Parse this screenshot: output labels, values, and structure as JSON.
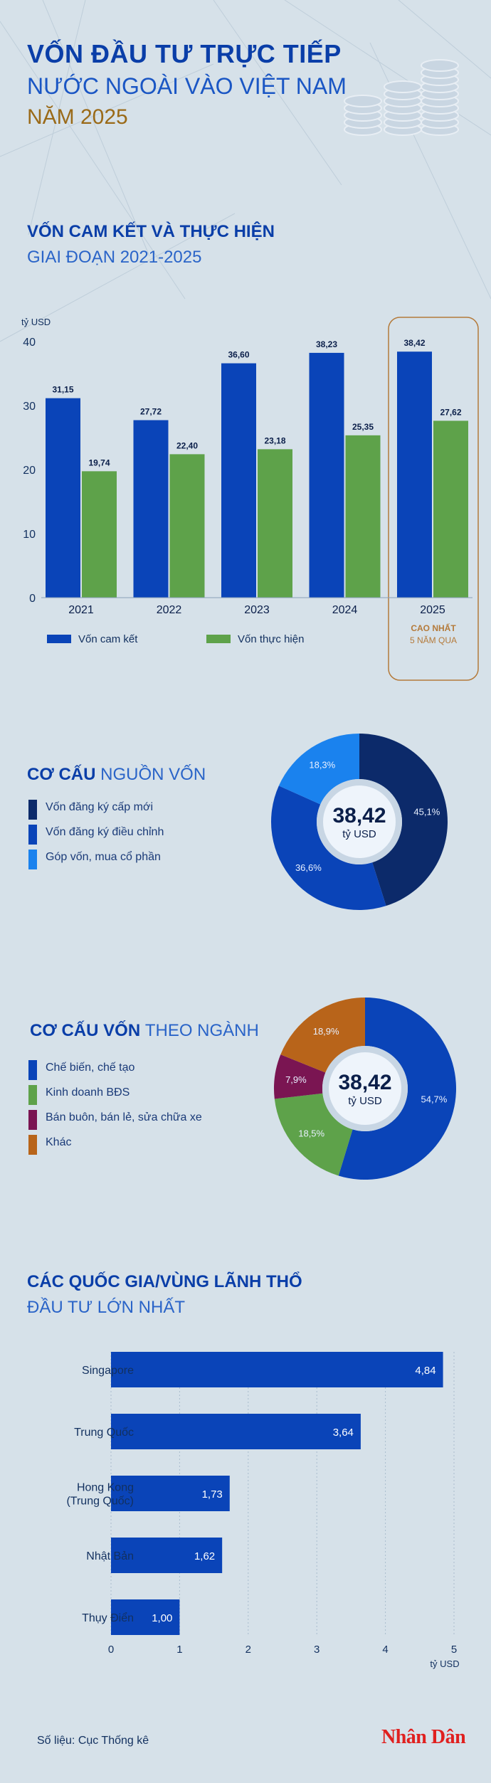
{
  "header": {
    "title_line1": "VỐN ĐẦU TƯ TRỰC TIẾP",
    "title_line2": "NƯỚC NGOÀI VÀO VIỆT NAM",
    "title_line3": "NĂM 2025"
  },
  "section1": {
    "title": "VỐN CAM KẾT VÀ THỰC HIỆN",
    "subtitle": "GIAI ĐOẠN 2021-2025",
    "highlight_line1": "CAO NHẤT",
    "highlight_line2": "5 NĂM QUA"
  },
  "section2": {
    "title_bold": "CƠ CẤU",
    "title_rest": "NGUỒN VỐN",
    "center_value": "38,42",
    "center_unit": "tỷ USD"
  },
  "section3": {
    "title_bold": "CƠ CẤU VỐN",
    "title_rest": "THEO NGÀNH",
    "center_value": "38,42",
    "center_unit": "tỷ USD"
  },
  "section4": {
    "title": "CÁC QUỐC GIA/VÙNG LÃNH THỔ",
    "subtitle": "ĐẦU TƯ LỚN NHẤT"
  },
  "footer": {
    "source": "Số liệu: Cục Thống kê",
    "logo": "Nhân Dân"
  },
  "colors": {
    "committed": "#0a44b8",
    "disbursed": "#5ea24a",
    "highlight": "#b47a3a",
    "text_blue": "#0a3ea8"
  },
  "chart_data": [
    {
      "type": "bar",
      "ylabel": "tỷ USD",
      "ylim": [
        0,
        40
      ],
      "yticks": [
        0,
        10,
        20,
        30,
        40
      ],
      "categories": [
        "2021",
        "2022",
        "2023",
        "2024",
        "2025"
      ],
      "series": [
        {
          "name": "Vốn cam kết",
          "color": "#0a44b8",
          "values": [
            31.15,
            27.72,
            36.6,
            38.23,
            38.42
          ],
          "labels": [
            "31,15",
            "27,72",
            "36,60",
            "38,23",
            "38,42"
          ]
        },
        {
          "name": "Vốn thực hiện",
          "color": "#5ea24a",
          "values": [
            19.74,
            22.4,
            23.18,
            25.35,
            27.62
          ],
          "labels": [
            "19,74",
            "22,40",
            "23,18",
            "25,35",
            "27,62"
          ]
        }
      ],
      "grid": false,
      "legend": "bottom"
    },
    {
      "type": "pie",
      "slices": [
        {
          "label": "Vốn đăng ký cấp mới",
          "value": 45.1,
          "text": "45,1%",
          "color": "#0c2a6a"
        },
        {
          "label": "Vốn đăng ký điều chỉnh",
          "value": 36.6,
          "text": "36,6%",
          "color": "#0a44b8"
        },
        {
          "label": "Góp vốn, mua cổ phần",
          "value": 18.3,
          "text": "18,3%",
          "color": "#1a82ee"
        }
      ],
      "legend": "left"
    },
    {
      "type": "pie",
      "slices": [
        {
          "label": "Chế biến, chế tạo",
          "value": 54.7,
          "text": "54,7%",
          "color": "#0a44b8"
        },
        {
          "label": "Kinh doanh BĐS",
          "value": 18.5,
          "text": "18,5%",
          "color": "#5ea24a"
        },
        {
          "label": "Bán buôn, bán lẻ, sửa chữa xe",
          "value": 7.9,
          "text": "7,9%",
          "color": "#7a1552"
        },
        {
          "label": "Khác",
          "value": 18.9,
          "text": "18,9%",
          "color": "#b8641a"
        }
      ],
      "legend": "left"
    },
    {
      "type": "bar",
      "orientation": "horizontal",
      "xlabel": "tỷ USD",
      "xlim": [
        0,
        5
      ],
      "xticks": [
        0,
        1,
        2,
        3,
        4,
        5
      ],
      "categories": [
        "Singapore",
        "Trung Quốc",
        "Hong Kong\n(Trung Quốc)",
        "Nhật Bản",
        "Thụy Điển"
      ],
      "values": [
        4.84,
        3.64,
        1.73,
        1.62,
        1.0
      ],
      "labels": [
        "4,84",
        "3,64",
        "1,73",
        "1,62",
        "1,00"
      ],
      "color": "#0a44b8",
      "grid": true
    }
  ]
}
